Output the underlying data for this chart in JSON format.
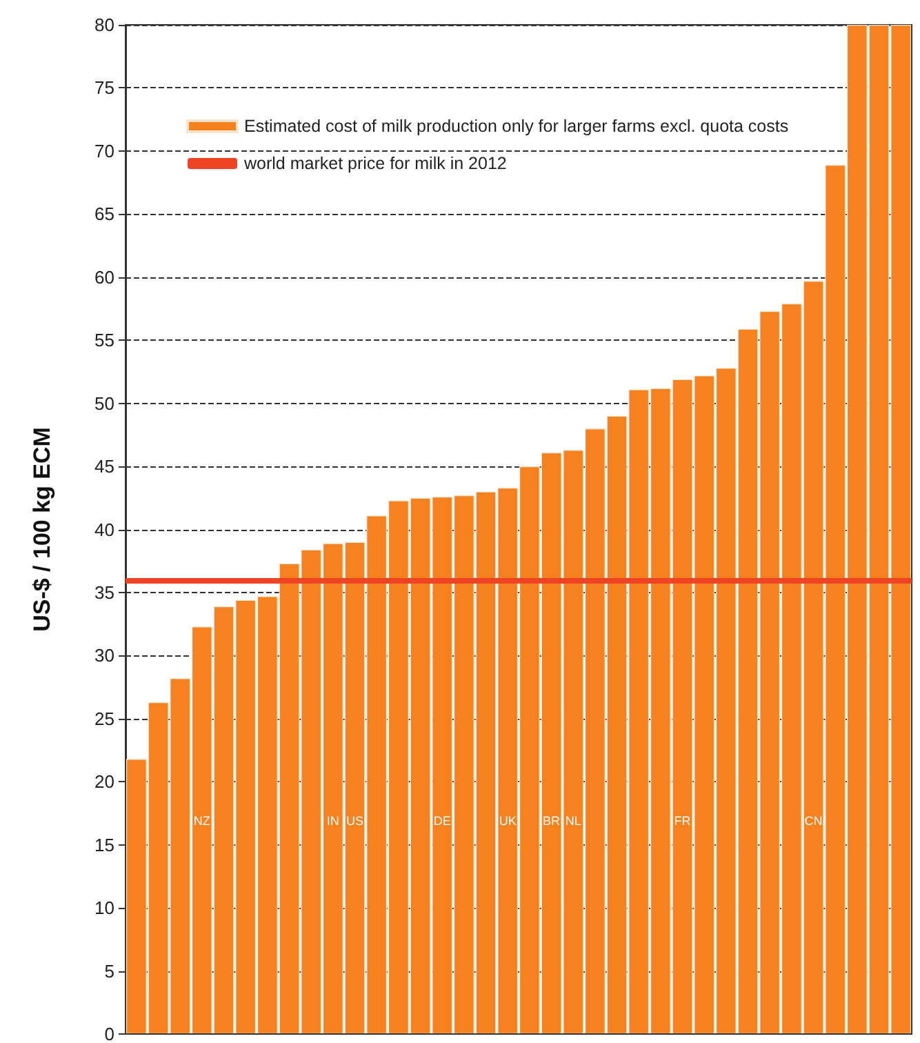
{
  "chart_data": {
    "type": "bar",
    "ylabel": "US-$ / 100 kg ECM",
    "categories": [
      null,
      null,
      null,
      "NZ",
      null,
      null,
      null,
      null,
      null,
      "IN",
      "US",
      null,
      null,
      null,
      "DE",
      null,
      null,
      "UK",
      null,
      "BR",
      "NL",
      null,
      null,
      null,
      null,
      "FR",
      null,
      null,
      null,
      null,
      null,
      "CN",
      null,
      null,
      null,
      null
    ],
    "series": [
      {
        "name": "Estimated cost of milk production only for larger farms excl. quota costs",
        "color": "#f5821f",
        "values": [
          21.8,
          26.3,
          28.2,
          32.3,
          33.9,
          34.4,
          34.7,
          37.3,
          38.4,
          38.9,
          39.0,
          41.1,
          42.3,
          42.5,
          42.6,
          42.7,
          43.0,
          43.3,
          45.0,
          46.1,
          46.3,
          48.0,
          49.0,
          51.1,
          51.2,
          51.9,
          52.2,
          52.8,
          55.9,
          57.3,
          57.9,
          59.7,
          68.9,
          80,
          80,
          80
        ]
      }
    ],
    "ref_lines": [
      {
        "axis": "y",
        "value": 36,
        "label": "world market price for milk in 2012",
        "color": "#ee4423",
        "line_style": "solid"
      }
    ],
    "ylim": [
      0,
      80
    ],
    "yticks": [
      0,
      5,
      10,
      15,
      20,
      25,
      30,
      35,
      40,
      45,
      50,
      55,
      60,
      65,
      70,
      75,
      80
    ],
    "grid": "y",
    "legend": "top left"
  }
}
